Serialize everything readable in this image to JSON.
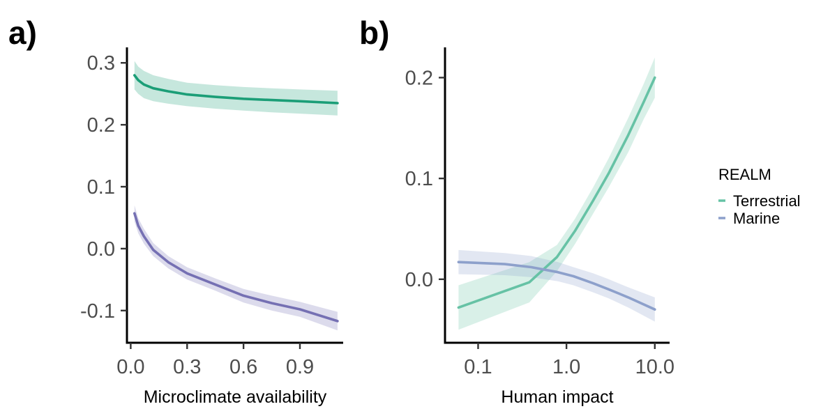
{
  "legend": {
    "title": "REALM",
    "entries": [
      {
        "label": "Terrestrial",
        "color": "#66c2a5"
      },
      {
        "label": "Marine",
        "color": "#8da0cb"
      }
    ]
  },
  "chart_data": [
    {
      "type": "line",
      "panel_label": "a)",
      "xlabel": "Microclimate availability",
      "ylabel": "",
      "x_scale": "linear",
      "xlim": [
        -0.02,
        1.13
      ],
      "ylim": [
        -0.152,
        0.325
      ],
      "x_ticks": [
        {
          "value": 0.0,
          "label": "0.0"
        },
        {
          "value": 0.3,
          "label": "0.3"
        },
        {
          "value": 0.6,
          "label": "0.6"
        },
        {
          "value": 0.9,
          "label": "0.9"
        }
      ],
      "y_ticks": [
        {
          "value": 0.3,
          "label": "0.3"
        },
        {
          "value": 0.2,
          "label": "0.2"
        },
        {
          "value": 0.1,
          "label": "0.1"
        },
        {
          "value": 0.0,
          "label": "0.0"
        },
        {
          "value": -0.1,
          "label": "-0.1"
        }
      ],
      "grid": false,
      "series": [
        {
          "color": "#1b9e77",
          "band_color": "#1b9e77",
          "x": [
            0.02,
            0.04,
            0.07,
            0.12,
            0.2,
            0.3,
            0.45,
            0.6,
            0.75,
            0.9,
            1.1
          ],
          "y": [
            0.28,
            0.272,
            0.265,
            0.259,
            0.254,
            0.249,
            0.245,
            0.242,
            0.24,
            0.238,
            0.235
          ],
          "lower": [
            0.257,
            0.25,
            0.243,
            0.238,
            0.234,
            0.23,
            0.226,
            0.223,
            0.22,
            0.218,
            0.215
          ],
          "upper": [
            0.303,
            0.294,
            0.287,
            0.28,
            0.274,
            0.268,
            0.264,
            0.261,
            0.259,
            0.257,
            0.255
          ]
        },
        {
          "color": "#7570b3",
          "band_color": "#7570b3",
          "x": [
            0.02,
            0.04,
            0.07,
            0.12,
            0.2,
            0.3,
            0.45,
            0.6,
            0.75,
            0.9,
            1.1
          ],
          "y": [
            0.057,
            0.037,
            0.02,
            -0.002,
            -0.022,
            -0.04,
            -0.058,
            -0.076,
            -0.088,
            -0.098,
            -0.117
          ],
          "lower": [
            0.044,
            0.025,
            0.008,
            -0.012,
            -0.032,
            -0.05,
            -0.068,
            -0.087,
            -0.1,
            -0.11,
            -0.132
          ],
          "upper": [
            0.07,
            0.049,
            0.032,
            0.009,
            -0.012,
            -0.03,
            -0.048,
            -0.065,
            -0.076,
            -0.086,
            -0.102
          ]
        }
      ]
    },
    {
      "type": "line",
      "panel_label": "b)",
      "xlabel": "Human impact",
      "ylabel": "",
      "x_scale": "log10",
      "xlim": [
        0.0422,
        14.7
      ],
      "ylim": [
        -0.063,
        0.23
      ],
      "x_ticks": [
        {
          "value": 0.1,
          "label": "0.1"
        },
        {
          "value": 1.0,
          "label": "1.0"
        },
        {
          "value": 10.0,
          "label": "10.0"
        }
      ],
      "y_ticks": [
        {
          "value": 0.2,
          "label": "0.2"
        },
        {
          "value": 0.1,
          "label": "0.1"
        },
        {
          "value": 0.0,
          "label": "0.0"
        }
      ],
      "grid": false,
      "series": [
        {
          "name": "Terrestrial",
          "color": "#66c2a5",
          "band_color": "#66c2a5",
          "x": [
            0.06,
            0.38,
            0.78,
            1.25,
            2.0,
            3.0,
            5.0,
            7.5,
            10.0
          ],
          "y": [
            -0.028,
            -0.003,
            0.022,
            0.048,
            0.078,
            0.105,
            0.143,
            0.176,
            0.2
          ],
          "lower": [
            -0.05,
            -0.023,
            0.008,
            0.035,
            0.065,
            0.091,
            0.126,
            0.159,
            0.18
          ],
          "upper": [
            -0.006,
            0.017,
            0.034,
            0.06,
            0.091,
            0.12,
            0.16,
            0.194,
            0.22
          ]
        },
        {
          "name": "Marine",
          "color": "#8da0cb",
          "band_color": "#8da0cb",
          "x": [
            0.06,
            0.2,
            0.4,
            0.8,
            1.2,
            2.0,
            3.0,
            5.0,
            10.0
          ],
          "y": [
            0.017,
            0.015,
            0.012,
            0.007,
            0.003,
            -0.004,
            -0.01,
            -0.018,
            -0.03
          ],
          "lower": [
            0.005,
            0.004,
            0.002,
            -0.002,
            -0.006,
            -0.013,
            -0.019,
            -0.028,
            -0.042
          ],
          "upper": [
            0.029,
            0.026,
            0.023,
            0.017,
            0.012,
            0.006,
            0.0,
            -0.008,
            -0.018
          ]
        }
      ]
    }
  ]
}
